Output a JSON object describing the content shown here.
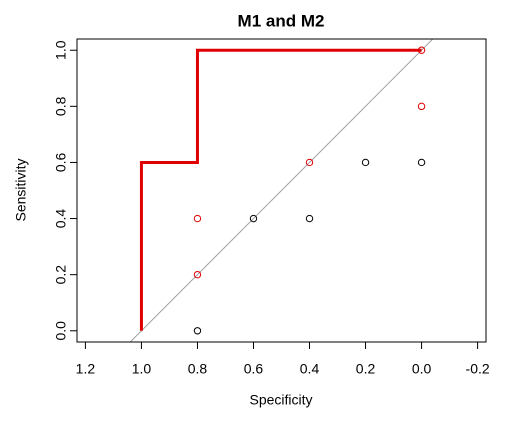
{
  "chart_data": {
    "type": "scatter",
    "title": "M1 and M2",
    "x_label": "Specificity",
    "y_label": "Sensitivity",
    "xlim": [
      1.23,
      -0.23
    ],
    "ylim": [
      -0.04,
      1.04
    ],
    "xticks": [
      1.2,
      {
        "value": 1.0,
        "label": "1.0"
      },
      0.8,
      0.6,
      0.4,
      0.2,
      {
        "value": 0.0,
        "label": "0.0"
      },
      -0.2
    ],
    "yticks": [
      {
        "value": 0.0,
        "label": "0.0"
      },
      0.2,
      0.4,
      0.6,
      0.8,
      {
        "value": 1.0,
        "label": "1.0"
      }
    ],
    "reference_line": {
      "intercept": 1,
      "slope": -1,
      "color": "#a0a0a0"
    },
    "series": [
      {
        "type": "step",
        "color": "#e00000",
        "x": [
          1.0,
          1.0,
          0.8,
          0.8,
          0.0
        ],
        "values": [
          0.0,
          0.6,
          0.6,
          1.0,
          1.0
        ]
      },
      {
        "type": "scatter",
        "color": "#000000",
        "x": [
          0.8,
          0.6,
          0.4,
          0.2,
          0.0
        ],
        "values": [
          0.0,
          0.4,
          0.4,
          0.6,
          0.6
        ]
      },
      {
        "type": "scatter",
        "color": "#e00000",
        "x": [
          0.8,
          0.8,
          0.4,
          0.0,
          0.0
        ],
        "values": [
          0.2,
          0.4,
          0.6,
          0.8,
          1.0
        ]
      }
    ]
  }
}
